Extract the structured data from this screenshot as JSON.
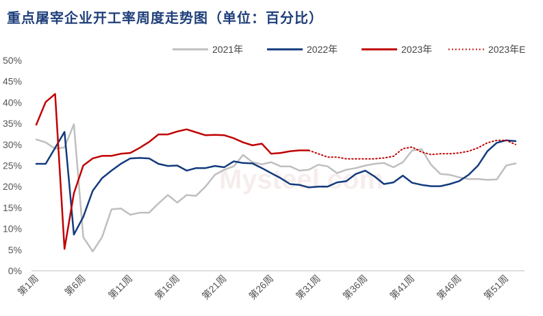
{
  "title": "重点屠宰企业开工率周度走势图（单位：百分比）",
  "watermark": "Mysteel.com",
  "chart_data": {
    "type": "line",
    "title": "重点屠宰企业开工率周度走势图（单位：百分比）",
    "xlabel": "",
    "ylabel": "",
    "ylim": [
      0,
      50
    ],
    "y_ticks": [
      "0%",
      "5%",
      "10%",
      "15%",
      "20%",
      "25%",
      "30%",
      "35%",
      "40%",
      "45%",
      "50%"
    ],
    "x_tick_labels": [
      "第1周",
      "第6周",
      "第11周",
      "第16周",
      "第21周",
      "第26周",
      "第31周",
      "第36周",
      "第41周",
      "第46周",
      "第51周"
    ],
    "x_tick_weeks": [
      1,
      6,
      11,
      16,
      21,
      26,
      31,
      36,
      41,
      46,
      51
    ],
    "x_range": [
      1,
      52
    ],
    "grid": false,
    "legend_position": "top-right",
    "series": [
      {
        "name": "2021年",
        "color": "#bfbfbf",
        "style": "solid",
        "x": [
          1,
          2,
          3,
          4,
          5,
          6,
          7,
          8,
          9,
          10,
          11,
          12,
          13,
          14,
          15,
          16,
          17,
          18,
          19,
          20,
          21,
          22,
          23,
          24,
          25,
          26,
          27,
          28,
          29,
          30,
          31,
          32,
          33,
          34,
          35,
          36,
          37,
          38,
          39,
          40,
          41,
          42,
          43,
          44,
          45,
          46,
          47,
          48,
          49,
          50,
          51,
          52
        ],
        "values": [
          31.2,
          30.5,
          29,
          29.3,
          34.8,
          8,
          4.6,
          8,
          14.6,
          14.8,
          13.3,
          13.8,
          13.8,
          16,
          18,
          16.2,
          18,
          17.8,
          20,
          22.8,
          24,
          24.8,
          27.5,
          25.8,
          25.3,
          25.8,
          24.8,
          24.8,
          23.8,
          24,
          25.2,
          24.8,
          23.2,
          24,
          24.4,
          25,
          25.4,
          25.6,
          24.6,
          25.8,
          28.6,
          28.9,
          25.2,
          23,
          22.8,
          22.2,
          21.8,
          21.8,
          21.6,
          21.7,
          25,
          25.5
        ]
      },
      {
        "name": "2022年",
        "color": "#123a7d",
        "style": "solid",
        "x": [
          1,
          2,
          3,
          4,
          5,
          6,
          7,
          8,
          9,
          10,
          11,
          12,
          13,
          14,
          15,
          16,
          17,
          18,
          19,
          20,
          21,
          22,
          23,
          24,
          25,
          26,
          27,
          28,
          29,
          30,
          31,
          32,
          33,
          34,
          35,
          36,
          37,
          38,
          39,
          40,
          41,
          42,
          43,
          44,
          45,
          46,
          47,
          48,
          49,
          50,
          51,
          52
        ],
        "values": [
          25.4,
          25.4,
          29.2,
          33,
          8.6,
          12.8,
          19,
          22,
          23.8,
          25.4,
          26.7,
          26.8,
          26.7,
          25.4,
          24.9,
          25,
          23.8,
          24.4,
          24.4,
          24.9,
          24.6,
          26,
          25.6,
          25.5,
          24.4,
          23.2,
          22,
          20.6,
          20.4,
          19.8,
          20,
          20,
          21,
          21.3,
          23,
          23.8,
          22.4,
          20.6,
          21,
          22.6,
          20.9,
          20.4,
          20.1,
          20.1,
          20.6,
          21.3,
          22.8,
          25,
          28.4,
          30.4,
          31,
          30.8
        ]
      },
      {
        "name": "2023年",
        "color": "#c00000",
        "style": "solid",
        "x": [
          1,
          2,
          3,
          4,
          5,
          6,
          7,
          8,
          9,
          10,
          11,
          12,
          13,
          14,
          15,
          16,
          17,
          18,
          19,
          20,
          21,
          22,
          23,
          24,
          25,
          26,
          27,
          28,
          29,
          30
        ],
        "values": [
          34.7,
          40.1,
          42,
          5.2,
          18.4,
          25,
          26.7,
          27.3,
          27.3,
          27.8,
          28,
          29.2,
          30.6,
          32.4,
          32.4,
          33.1,
          33.6,
          32.9,
          32.2,
          32.3,
          32.2,
          31.5,
          30.5,
          29.8,
          30.2,
          27.8,
          28,
          28.4,
          28.6,
          28.6
        ]
      },
      {
        "name": "2023年E",
        "color": "#c00000",
        "style": "dotted",
        "x": [
          30,
          31,
          32,
          33,
          34,
          35,
          36,
          37,
          38,
          39,
          40,
          41,
          42,
          43,
          44,
          45,
          46,
          47,
          48,
          49,
          50,
          51,
          52
        ],
        "values": [
          28.6,
          27.8,
          27,
          27,
          26.6,
          26.6,
          26.6,
          26.6,
          26.8,
          27.2,
          29,
          29.4,
          28.2,
          27.6,
          27.8,
          27.8,
          28,
          28.4,
          29.2,
          30.4,
          31,
          31,
          30
        ]
      }
    ]
  }
}
